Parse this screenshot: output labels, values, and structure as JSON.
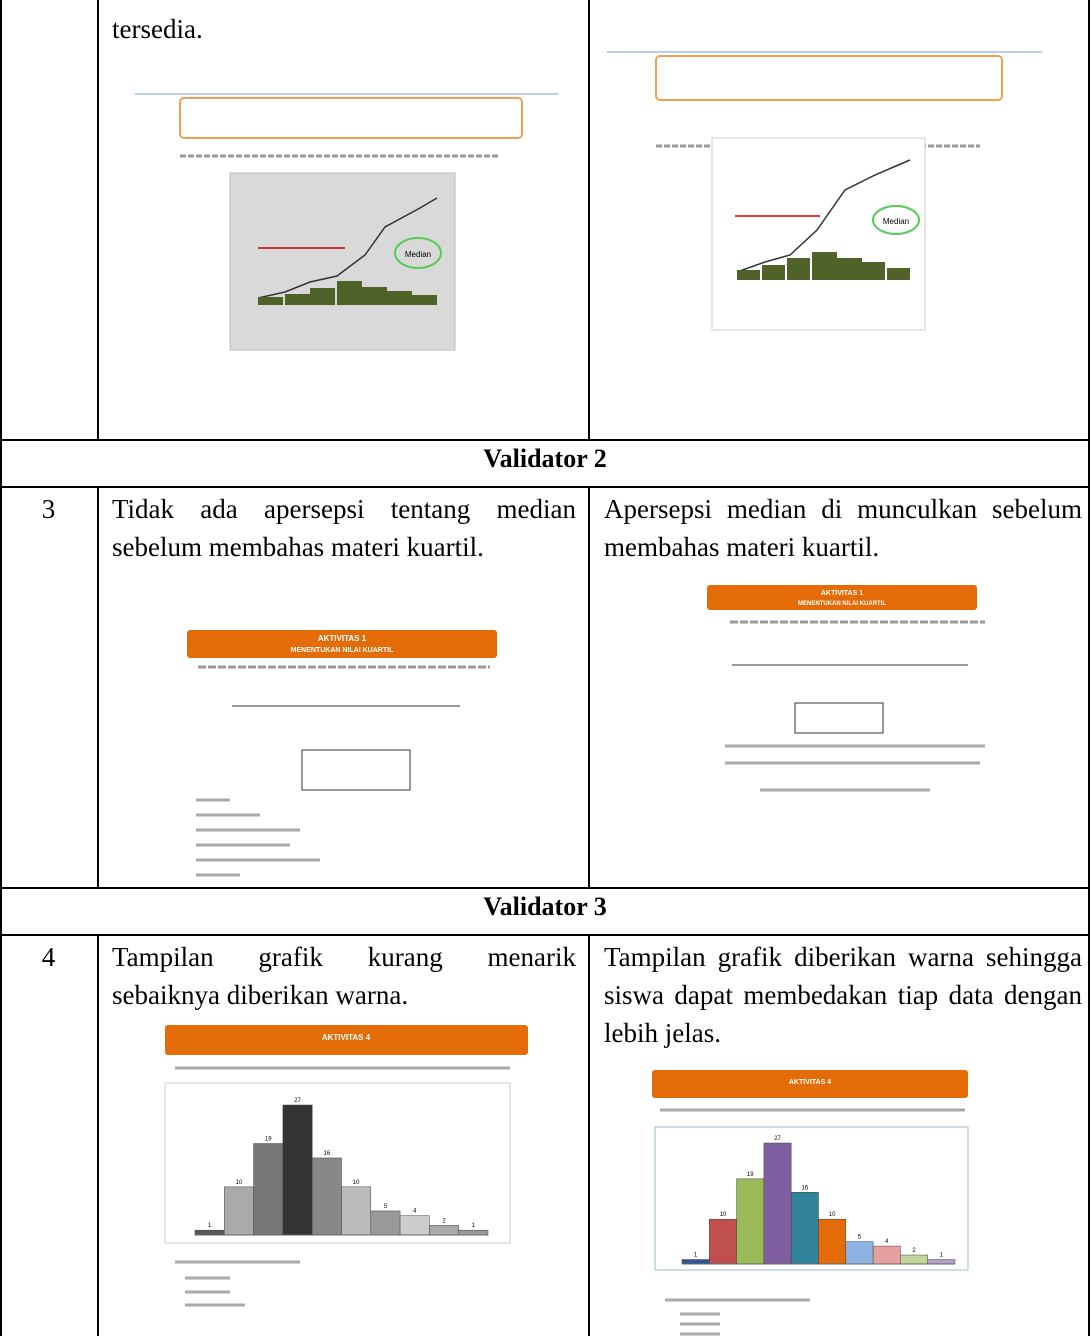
{
  "table": {
    "rows": [
      {
        "before": "tersedia.",
        "before_figure": {
          "label": "Median"
        },
        "after_figure": {
          "label": "Median"
        }
      },
      {
        "section": "Validator 2"
      },
      {
        "number": "3",
        "before": "Tidak ada apersepsi tentang median sebelum membahas materi kuartil.",
        "after": "Apersepsi median di munculkan sebelum membahas materi kuartil.",
        "before_figure": {
          "title": "AKTIVITAS 1",
          "subtitle": "MENENTUKAN NILAI KUARTIL"
        },
        "after_figure": {
          "title": "AKTIVITAS 1",
          "subtitle": "MENENTUKAN NILAI KUARTIL"
        }
      },
      {
        "section": "Validator 3"
      },
      {
        "number": "4",
        "before": "Tampilan grafik kurang menarik sebaiknya diberikan warna.",
        "after": "Tampilan grafik diberikan warna sehingga siswa dapat membedakan tiap data dengan lebih jelas.",
        "before_figure": {
          "title": "AKTIVITAS 4",
          "values": [
            1,
            10,
            19,
            27,
            16,
            10,
            5,
            4,
            2,
            1
          ],
          "colors": [
            "#555",
            "#aaa",
            "#777",
            "#333",
            "#888",
            "#bbb",
            "#999",
            "#ccc",
            "#aaa",
            "#999"
          ]
        },
        "after_figure": {
          "title": "AKTIVITAS 4",
          "values": [
            1,
            10,
            19,
            27,
            16,
            10,
            5,
            4,
            2,
            1
          ],
          "colors": [
            "#2f5597",
            "#c0504d",
            "#9bbb59",
            "#7f5fa0",
            "#31849b",
            "#e36c09",
            "#8eb4e3",
            "#e6a0a0",
            "#c3d69b",
            "#b3a2c7"
          ]
        }
      }
    ]
  }
}
